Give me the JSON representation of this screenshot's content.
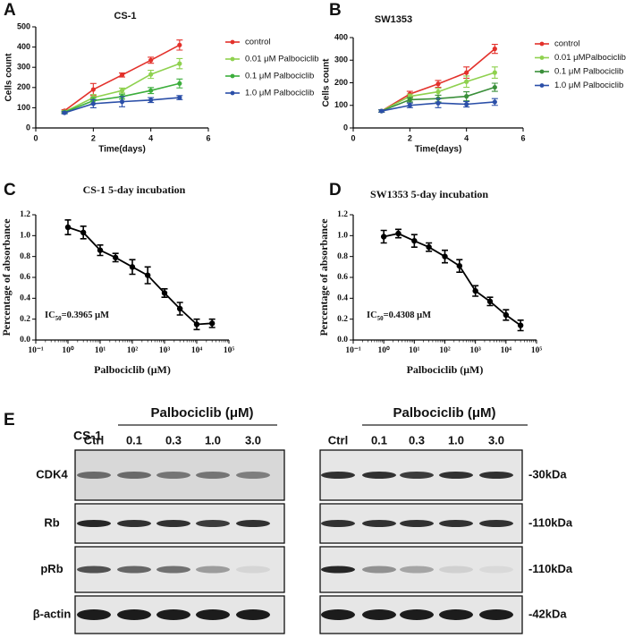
{
  "chart_data": [
    {
      "type": "line",
      "panel": "A",
      "title": "CS-1",
      "x_label": "Time(days)",
      "y_label": "Cells count",
      "x": [
        1,
        2,
        3,
        4,
        5
      ],
      "xlim": [
        0,
        6
      ],
      "xticks": [
        0,
        2,
        4,
        6
      ],
      "ylim": [
        0,
        500
      ],
      "yticks": [
        0,
        100,
        200,
        300,
        400,
        500
      ],
      "series": [
        {
          "name": "control",
          "color": "#e3312b",
          "values": [
            85,
            190,
            262,
            335,
            410
          ],
          "errors": [
            5,
            30,
            10,
            15,
            25
          ]
        },
        {
          "name": "0.01 μM Palbociclib",
          "color": "#8fd14f",
          "values": [
            80,
            150,
            185,
            265,
            318
          ],
          "errors": [
            5,
            15,
            12,
            20,
            25
          ]
        },
        {
          "name": "0.1 μM Palbociclib",
          "color": "#3cae3c",
          "values": [
            78,
            135,
            155,
            185,
            220
          ],
          "errors": [
            5,
            15,
            12,
            15,
            22
          ]
        },
        {
          "name": "1.0 μM Palbociclib",
          "color": "#2b4fa8",
          "values": [
            75,
            120,
            130,
            138,
            150
          ],
          "errors": [
            5,
            20,
            25,
            12,
            10
          ]
        }
      ]
    },
    {
      "type": "line",
      "panel": "B",
      "title": "SW1353",
      "x_label": "Time(days)",
      "y_label": "Cells count",
      "x": [
        1,
        2,
        3,
        4,
        5
      ],
      "xlim": [
        0,
        6
      ],
      "xticks": [
        0,
        2,
        4,
        6
      ],
      "ylim": [
        0,
        400
      ],
      "yticks": [
        0,
        100,
        200,
        300,
        400
      ],
      "series": [
        {
          "name": "control",
          "color": "#e3312b",
          "values": [
            75,
            150,
            195,
            245,
            350
          ],
          "errors": [
            5,
            12,
            15,
            25,
            20
          ]
        },
        {
          "name": "0.01  μMPalbociclib",
          "color": "#8fd14f",
          "values": [
            75,
            140,
            160,
            205,
            245
          ],
          "errors": [
            5,
            10,
            15,
            25,
            25
          ]
        },
        {
          "name": "0.1 μM Palbociclib",
          "color": "#3a8f3a",
          "values": [
            75,
            125,
            130,
            140,
            180
          ],
          "errors": [
            5,
            10,
            15,
            20,
            18
          ]
        },
        {
          "name": "1.0  μM Palbociclib",
          "color": "#2b4fa8",
          "values": [
            75,
            100,
            110,
            105,
            115
          ],
          "errors": [
            5,
            10,
            20,
            12,
            15
          ]
        }
      ]
    },
    {
      "type": "line",
      "panel": "C",
      "title": "CS-1 5-day incubation",
      "x_label": "Palbociclib (μM)",
      "y_label": "Percentage of absorbance",
      "xscale": "log",
      "x": [
        1,
        3,
        10,
        30,
        100,
        300,
        1000,
        3000,
        10000,
        30000
      ],
      "xlim": [
        0.1,
        100000
      ],
      "xticks": [
        {
          "value": 0.1,
          "label": "10⁻¹"
        },
        {
          "value": 1,
          "label": "10⁰"
        },
        {
          "value": 10,
          "label": "10¹"
        },
        {
          "value": 100,
          "label": "10²"
        },
        {
          "value": 1000,
          "label": "10³"
        },
        {
          "value": 10000,
          "label": "10⁴"
        },
        {
          "value": 100000,
          "label": "10⁵"
        }
      ],
      "ylim": [
        0,
        1.2
      ],
      "yticks": [
        {
          "value": 0,
          "label": "0.0"
        },
        0.2,
        0.4,
        0.6,
        0.8,
        {
          "value": 1,
          "label": "1.0"
        },
        1.2
      ],
      "series": [
        {
          "color": "#000000",
          "values": [
            1.08,
            1.03,
            0.86,
            0.79,
            0.7,
            0.62,
            0.45,
            0.3,
            0.15,
            0.16
          ],
          "errors": [
            0.07,
            0.06,
            0.05,
            0.04,
            0.07,
            0.08,
            0.04,
            0.06,
            0.05,
            0.04
          ]
        }
      ],
      "annotation": {
        "text": "IC",
        "sub": "50",
        "rest": "=0.3965 μM"
      }
    },
    {
      "type": "line",
      "panel": "D",
      "title": "SW1353 5-day incubation",
      "x_label": "Palbociclib (μM)",
      "y_label": "Percentage of absorbance",
      "xscale": "log",
      "x": [
        1,
        3,
        10,
        30,
        100,
        300,
        1000,
        3000,
        10000,
        30000
      ],
      "xlim": [
        0.1,
        100000
      ],
      "xticks": [
        {
          "value": 0.1,
          "label": "10⁻¹"
        },
        {
          "value": 1,
          "label": "10⁰"
        },
        {
          "value": 10,
          "label": "10¹"
        },
        {
          "value": 100,
          "label": "10²"
        },
        {
          "value": 1000,
          "label": "10³"
        },
        {
          "value": 10000,
          "label": "10⁴"
        },
        {
          "value": 100000,
          "label": "10⁵"
        }
      ],
      "ylim": [
        0,
        1.2
      ],
      "yticks": [
        {
          "value": 0,
          "label": "0.0"
        },
        0.2,
        0.4,
        0.6,
        0.8,
        {
          "value": 1,
          "label": "1.0"
        },
        1.2
      ],
      "series": [
        {
          "color": "#000000",
          "values": [
            0.99,
            1.02,
            0.95,
            0.89,
            0.8,
            0.71,
            0.47,
            0.37,
            0.24,
            0.14
          ],
          "errors": [
            0.06,
            0.04,
            0.06,
            0.04,
            0.06,
            0.06,
            0.05,
            0.04,
            0.05,
            0.05
          ]
        }
      ],
      "annotation": {
        "text": "IC",
        "sub": "50",
        "rest": "=0.4308 μM"
      }
    }
  ],
  "blot": {
    "panel": "E",
    "cell_line": "CS-1",
    "treatment": "Palbociclib (μM)",
    "lanes": [
      "Ctrl",
      "0.1",
      "0.3",
      "1.0",
      "3.0"
    ],
    "rows": [
      "CDK4",
      "Rb",
      "pRb",
      "β-actin"
    ],
    "sizes": [
      "-30kDa",
      "-110kDa",
      "-110kDa",
      "-42kDa"
    ]
  }
}
